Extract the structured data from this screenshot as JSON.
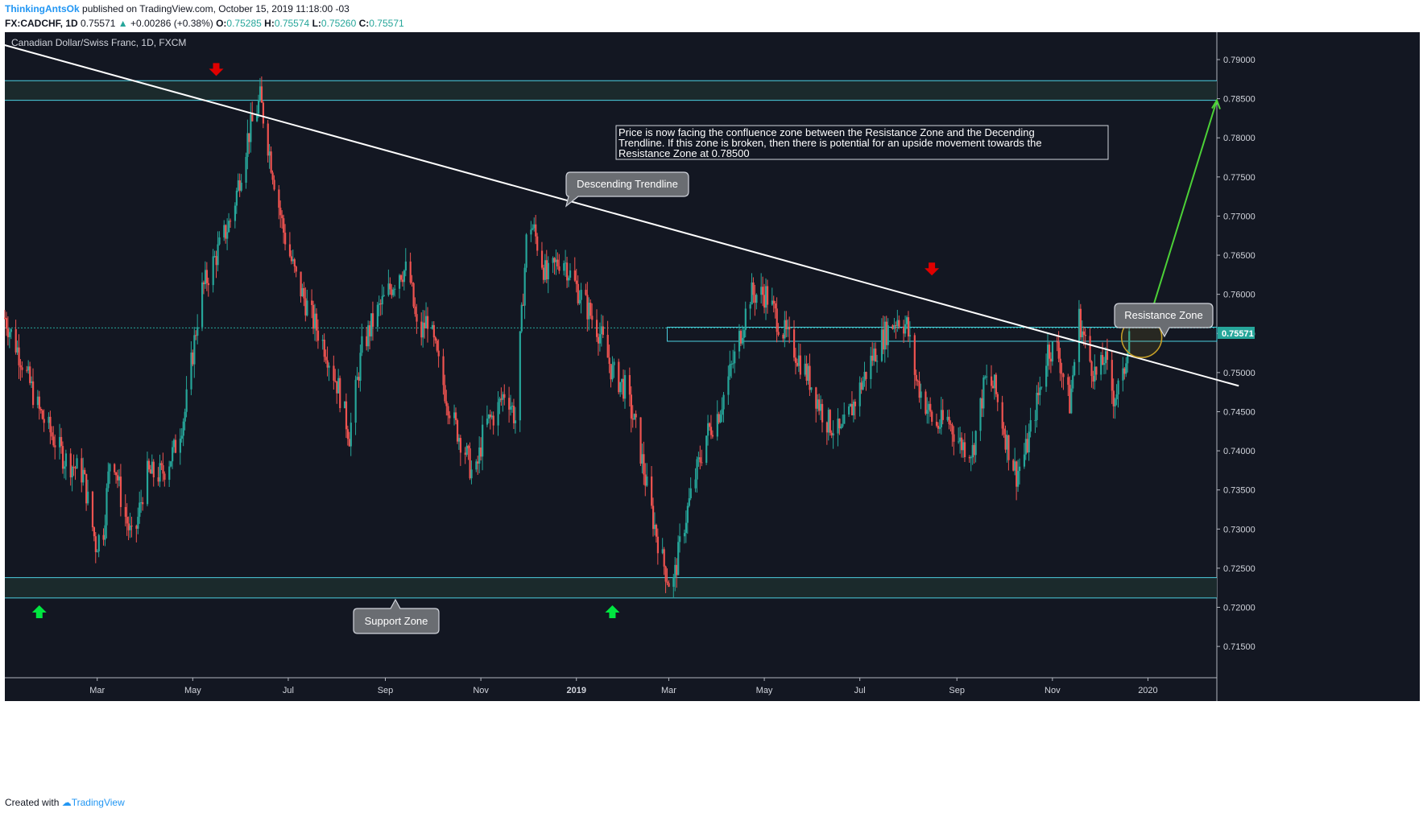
{
  "header": {
    "author": "ThinkingAntsOk",
    "published": "published on TradingView.com, October 15, 2019 11:18:00 -03",
    "symbol": "FX:CADCHF, 1D",
    "last": "0.75571",
    "change": "+0.00286 (+0.38%)",
    "o_label": "O:",
    "o": "0.75285",
    "h_label": "H:",
    "h": "0.75574",
    "l_label": "L:",
    "l": "0.75260",
    "c_label": "C:",
    "c": "0.75571"
  },
  "footer": {
    "created_with": "Created with",
    "brand": "TradingView"
  },
  "colors": {
    "background": "#131722",
    "up": "#26a69a",
    "down": "#ef5350",
    "zone_line": "#4dd0e1",
    "trend": "#ffffff",
    "green_arrow": "#00e640",
    "red_arrow": "#e00000",
    "projection": "#4cd137",
    "circle": "#c9a227"
  },
  "chart_data": {
    "type": "candlestick",
    "title": "Canadian Dollar/Swiss Franc, 1D, FXCM",
    "ylim": [
      0.711,
      0.7935
    ],
    "y_ticks": [
      "0.79000",
      "0.78500",
      "0.78000",
      "0.77500",
      "0.77000",
      "0.76500",
      "0.76000",
      "0.75500",
      "0.75000",
      "0.74500",
      "0.74000",
      "0.73500",
      "0.73000",
      "0.72500",
      "0.72000",
      "0.71500"
    ],
    "y_tick_values": [
      0.79,
      0.785,
      0.78,
      0.775,
      0.77,
      0.765,
      0.76,
      0.755,
      0.75,
      0.745,
      0.74,
      0.735,
      0.73,
      0.725,
      0.72,
      0.715
    ],
    "x_range_days": [
      0,
      718
    ],
    "x_ticks": [
      {
        "label": "Mar",
        "day": 59,
        "bold": false
      },
      {
        "label": "May",
        "day": 120,
        "bold": false
      },
      {
        "label": "Jul",
        "day": 181,
        "bold": false
      },
      {
        "label": "Sep",
        "day": 243,
        "bold": false
      },
      {
        "label": "Nov",
        "day": 304,
        "bold": false
      },
      {
        "label": "2019",
        "day": 365,
        "bold": true
      },
      {
        "label": "Mar",
        "day": 424,
        "bold": false
      },
      {
        "label": "May",
        "day": 485,
        "bold": false
      },
      {
        "label": "Jul",
        "day": 546,
        "bold": false
      },
      {
        "label": "Sep",
        "day": 608,
        "bold": false
      },
      {
        "label": "Nov",
        "day": 669,
        "bold": false
      },
      {
        "label": "2020",
        "day": 730,
        "bold": false
      }
    ],
    "price_anchors": [
      [
        0,
        0.757
      ],
      [
        10,
        0.752
      ],
      [
        22,
        0.745
      ],
      [
        38,
        0.739
      ],
      [
        50,
        0.737
      ],
      [
        58,
        0.728
      ],
      [
        63,
        0.73
      ],
      [
        68,
        0.741
      ],
      [
        75,
        0.733
      ],
      [
        82,
        0.728
      ],
      [
        90,
        0.737
      ],
      [
        100,
        0.737
      ],
      [
        108,
        0.74
      ],
      [
        115,
        0.745
      ],
      [
        125,
        0.76
      ],
      [
        135,
        0.765
      ],
      [
        145,
        0.77
      ],
      [
        155,
        0.78
      ],
      [
        163,
        0.785
      ],
      [
        170,
        0.777
      ],
      [
        178,
        0.768
      ],
      [
        186,
        0.762
      ],
      [
        196,
        0.757
      ],
      [
        205,
        0.753
      ],
      [
        213,
        0.748
      ],
      [
        220,
        0.742
      ],
      [
        228,
        0.753
      ],
      [
        236,
        0.757
      ],
      [
        244,
        0.76
      ],
      [
        252,
        0.763
      ],
      [
        258,
        0.763
      ],
      [
        264,
        0.754
      ],
      [
        270,
        0.757
      ],
      [
        278,
        0.75
      ],
      [
        286,
        0.744
      ],
      [
        294,
        0.74
      ],
      [
        300,
        0.736
      ],
      [
        306,
        0.743
      ],
      [
        314,
        0.745
      ],
      [
        320,
        0.748
      ],
      [
        326,
        0.744
      ],
      [
        334,
        0.77
      ],
      [
        338,
        0.768
      ],
      [
        346,
        0.762
      ],
      [
        356,
        0.765
      ],
      [
        362,
        0.762
      ],
      [
        370,
        0.759
      ],
      [
        380,
        0.755
      ],
      [
        388,
        0.75
      ],
      [
        396,
        0.748
      ],
      [
        404,
        0.742
      ],
      [
        412,
        0.733
      ],
      [
        420,
        0.726
      ],
      [
        426,
        0.722
      ],
      [
        432,
        0.729
      ],
      [
        440,
        0.736
      ],
      [
        448,
        0.742
      ],
      [
        456,
        0.745
      ],
      [
        466,
        0.752
      ],
      [
        476,
        0.76
      ],
      [
        486,
        0.76
      ],
      [
        495,
        0.756
      ],
      [
        504,
        0.753
      ],
      [
        514,
        0.749
      ],
      [
        524,
        0.744
      ],
      [
        534,
        0.742
      ],
      [
        544,
        0.747
      ],
      [
        554,
        0.752
      ],
      [
        562,
        0.755
      ],
      [
        570,
        0.757
      ],
      [
        576,
        0.756
      ],
      [
        582,
        0.749
      ],
      [
        588,
        0.746
      ],
      [
        594,
        0.743
      ],
      [
        602,
        0.744
      ],
      [
        610,
        0.741
      ],
      [
        618,
        0.74
      ],
      [
        626,
        0.749
      ],
      [
        632,
        0.748
      ],
      [
        640,
        0.741
      ],
      [
        646,
        0.737
      ],
      [
        652,
        0.74
      ],
      [
        660,
        0.747
      ],
      [
        666,
        0.753
      ],
      [
        672,
        0.753
      ],
      [
        680,
        0.746
      ],
      [
        686,
        0.757
      ],
      [
        692,
        0.752
      ],
      [
        698,
        0.749
      ],
      [
        702,
        0.752
      ],
      [
        708,
        0.747
      ],
      [
        714,
        0.749
      ],
      [
        718,
        0.7557
      ]
    ],
    "support_zone": [
      0.7212,
      0.7238
    ],
    "resistance_zone_top": [
      0.7848,
      0.7873
    ],
    "current_price_zone": [
      0.754,
      0.7558
    ],
    "last_price_label": "0.75571",
    "last_price": 0.75571,
    "trendline": {
      "start": [
        -30,
        0.7935
      ],
      "end": [
        788,
        0.7483
      ]
    },
    "projection": {
      "start": [
        730,
        0.7563
      ],
      "end": [
        774,
        0.7848
      ]
    },
    "circle_center": [
      726,
      0.7545
    ],
    "up_arrows_days": [
      22,
      388
    ],
    "down_arrows": [
      {
        "day": 135,
        "price": 0.7875
      },
      {
        "day": 592,
        "price": 0.762
      }
    ],
    "annotations": {
      "descending": "Descending Trendline",
      "support": "Support Zone",
      "resistance": "Resistance Zone",
      "note": [
        "Price is now facing the confluence zone between the Resistance Zone and the Decending",
        "Trendline. If this zone is broken, then there is potential for an upside movement towards the",
        "Resistance Zone at 0.78500"
      ]
    }
  }
}
